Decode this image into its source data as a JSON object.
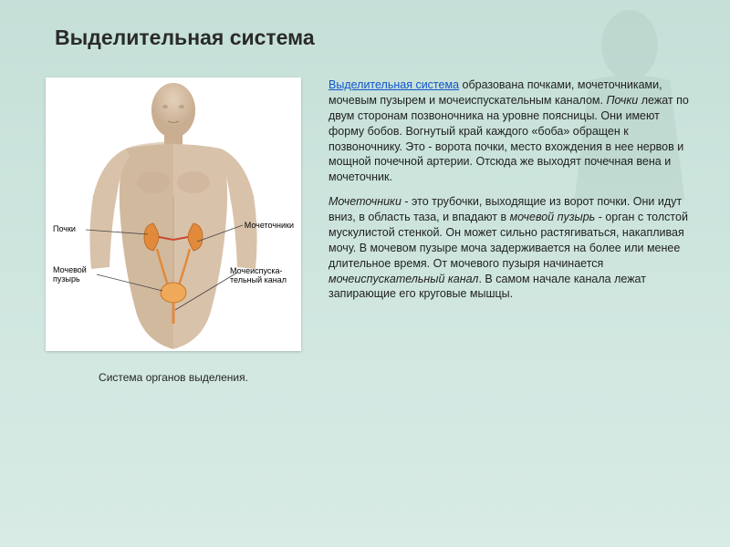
{
  "page": {
    "title": "Выделительная система",
    "caption": "Система органов выделения.",
    "background_color": "#c5e0d8"
  },
  "figure": {
    "labels": {
      "kidneys": "Почки",
      "bladder": "Мочевой\nпузырь",
      "ureters": "Мочеточники",
      "urethra": "Мочеиспуска-\nтельный канал"
    },
    "organ_color": "#e28a3c",
    "skin_color": "#d9c2aa",
    "skin_shadow": "#b89678",
    "bg_color": "#ffffff"
  },
  "text": {
    "link_text": "Выделительная система",
    "link_color": "#1155cc",
    "p1_after_link": " образована почками, мочеточниками, мочевым пузырем и мочеиспускательным каналом. ",
    "p1_em": "Почки",
    "p1_rest": " лежат по двум сторонам позвоночника на уровне поясницы. Они имеют форму бобов. Вогнутый край каждого «боба» обращен к позвоночнику. Это - ворота почки, место вхождения в нее нервов и мощной почечной артерии. Отсюда же выходят почечная вена и мочеточник.",
    "p2_em1": "Мочеточники",
    "p2_mid1": " - это трубочки, выходящие из ворот почки. Они идут вниз, в область таза, и впадают в ",
    "p2_em2": "мочевой пузырь",
    "p2_mid2": " - орган с толстой мускулистой стенкой. Он может сильно растягиваться, накапливая мочу. В мочевом пузыре моча задерживается на более или менее длительное время. От мочевого пузыря начинается ",
    "p2_em3": "мочеиспускательный канал",
    "p2_rest": ". В самом начале канала лежат запирающие его круговые мышцы."
  },
  "typography": {
    "title_fontsize": 23,
    "body_fontsize": 12.5,
    "label_fontsize": 9,
    "caption_fontsize": 12
  }
}
